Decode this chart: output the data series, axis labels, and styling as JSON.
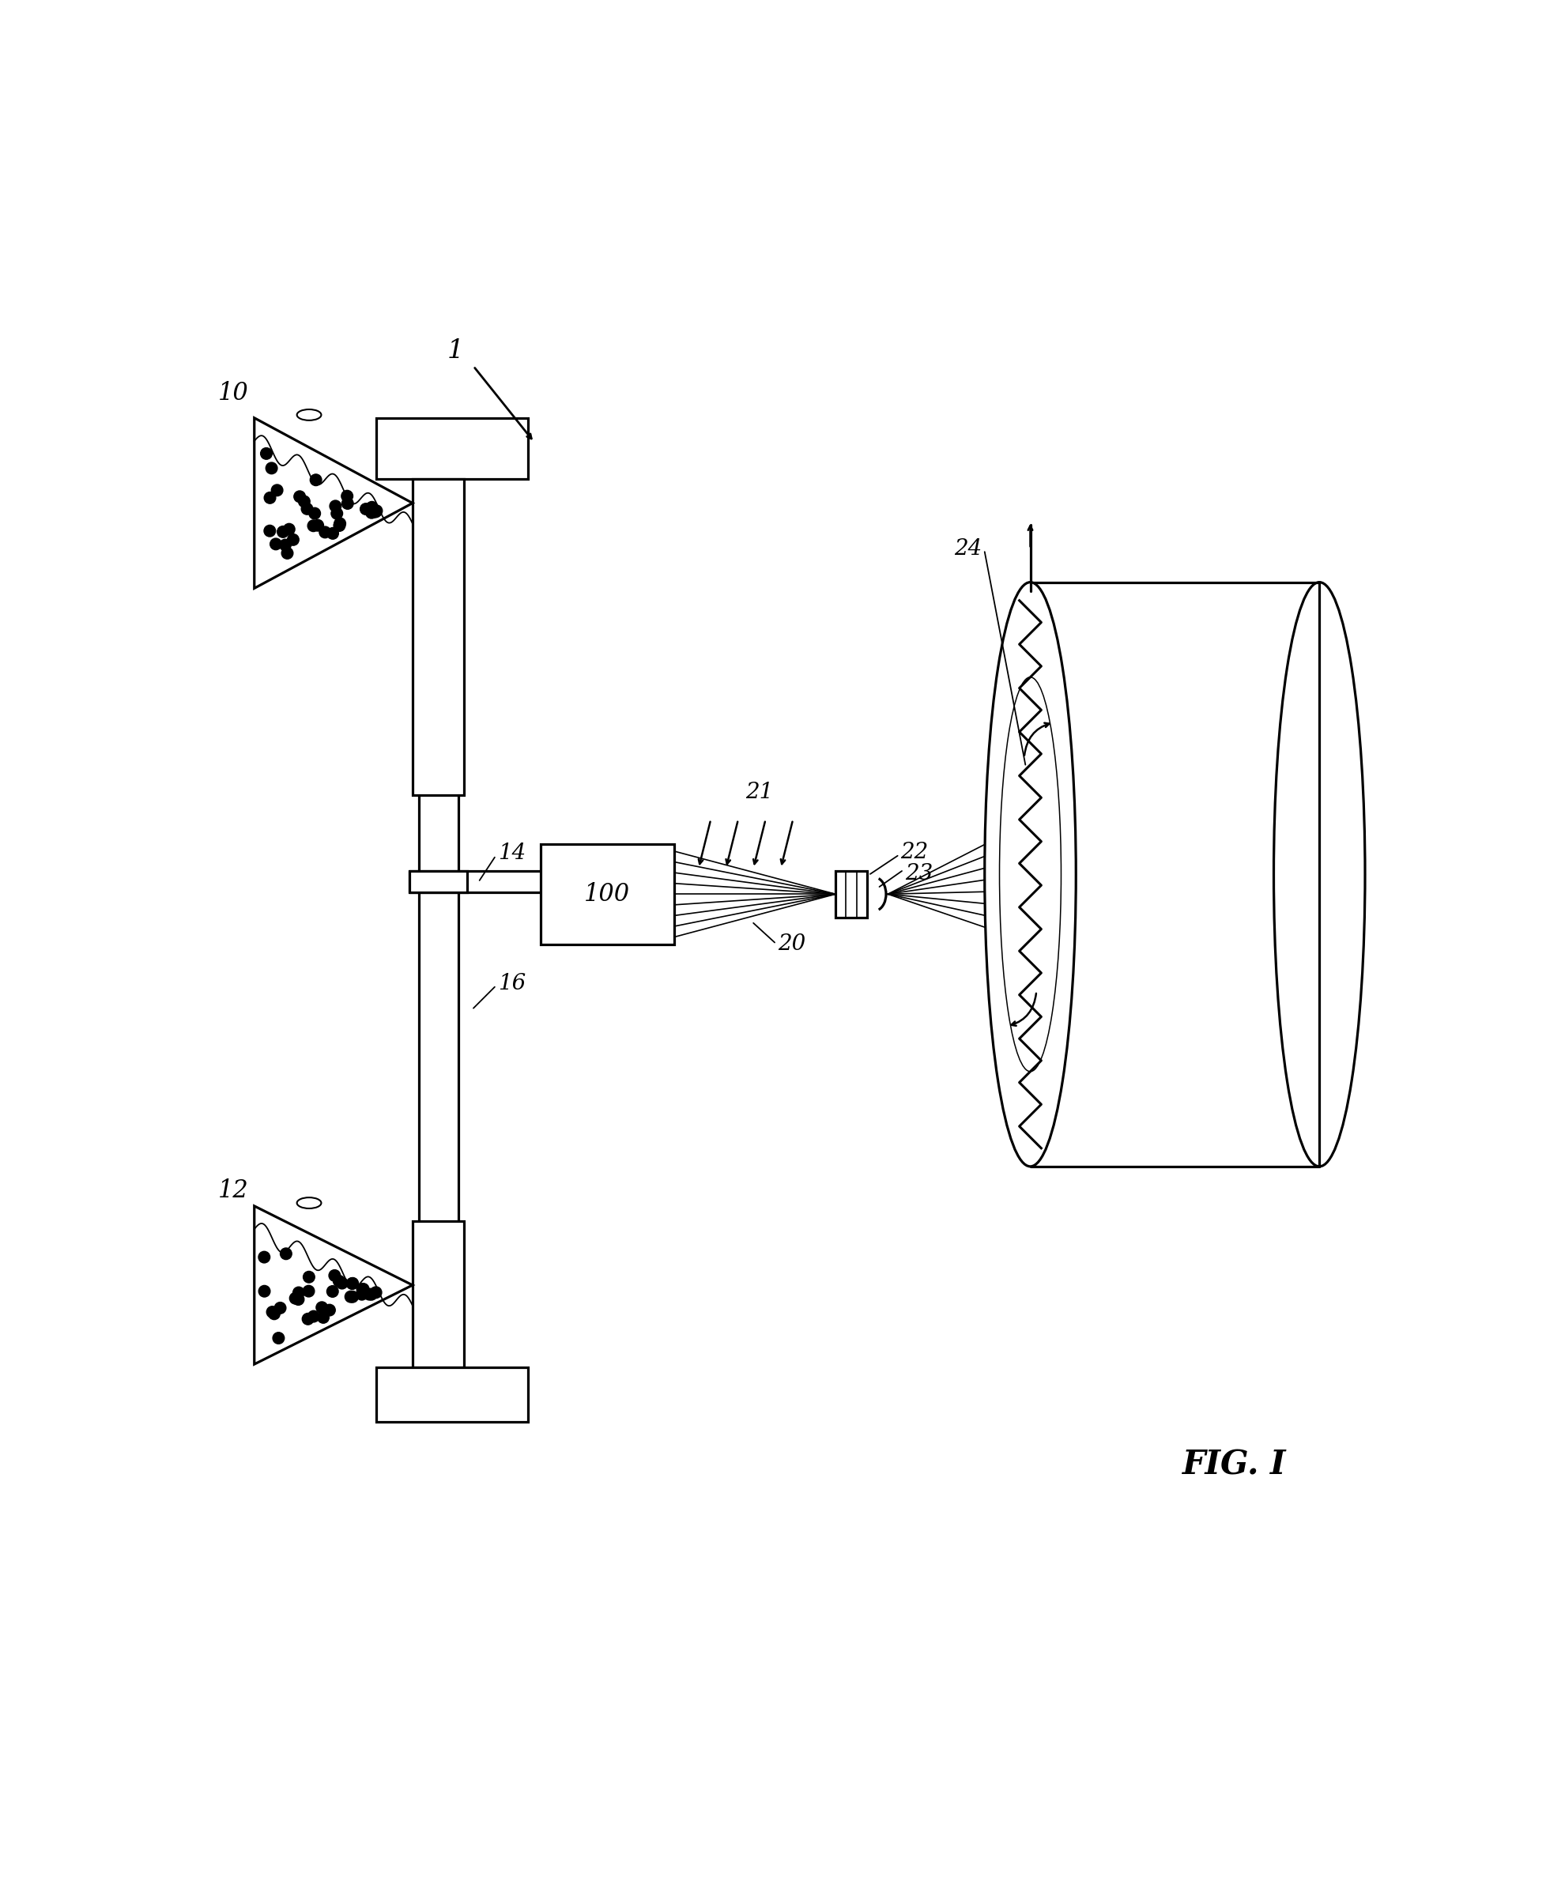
{
  "bg_color": "#ffffff",
  "line_color": "#000000",
  "label_1": "1",
  "label_10": "10",
  "label_12": "12",
  "label_14": "14",
  "label_16": "16",
  "label_100": "100",
  "label_20": "20",
  "label_21": "21",
  "label_22": "22",
  "label_23": "23",
  "label_24": "24",
  "fig_label": "FIG. I"
}
